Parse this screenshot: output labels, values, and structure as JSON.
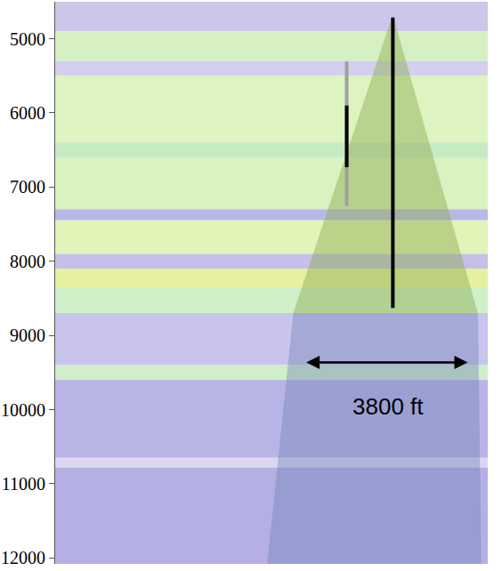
{
  "chart_data": {
    "type": "section",
    "tick_labels": "y",
    "grid": false,
    "xlim": [
      0,
      10100
    ],
    "ylim": [
      12080,
      4502
    ],
    "yticks": [
      5000,
      6000,
      7000,
      8000,
      9000,
      10000,
      11000,
      12000
    ],
    "layers": [
      {
        "top": 4502,
        "bottom": 4900,
        "color": "#cdc6ea"
      },
      {
        "top": 4900,
        "bottom": 5300,
        "color": "#d6f0c2"
      },
      {
        "top": 5300,
        "bottom": 5500,
        "color": "#d4cfee"
      },
      {
        "top": 5500,
        "bottom": 6400,
        "color": "#ddf4c0"
      },
      {
        "top": 6400,
        "bottom": 6600,
        "color": "#c6eac2"
      },
      {
        "top": 6600,
        "bottom": 7300,
        "color": "#d8f2c0"
      },
      {
        "top": 7300,
        "bottom": 7450,
        "color": "#b8b8e8"
      },
      {
        "top": 7450,
        "bottom": 7900,
        "color": "#e2f4b8"
      },
      {
        "top": 7900,
        "bottom": 8100,
        "color": "#c4c0ea"
      },
      {
        "top": 8100,
        "bottom": 8350,
        "color": "#e6f0a0"
      },
      {
        "top": 8350,
        "bottom": 8700,
        "color": "#d0f0c8"
      },
      {
        "top": 8700,
        "bottom": 9400,
        "color": "#c8c4ec"
      },
      {
        "top": 9400,
        "bottom": 9600,
        "color": "#d0eec8"
      },
      {
        "top": 9600,
        "bottom": 10650,
        "color": "#b8b4e6"
      },
      {
        "top": 10650,
        "bottom": 10780,
        "color": "#dcd6f2"
      },
      {
        "top": 10780,
        "bottom": 12080,
        "color": "#b4b0e4"
      }
    ],
    "image_regions": [
      {
        "x": [
          7880,
          9870,
          5560
        ],
        "y": [
          4680,
          8700,
          8700
        ],
        "color": "rgba(140,170,80,0.45)"
      },
      {
        "x": [
          5560,
          9870,
          9950,
          4950
        ],
        "y": [
          8700,
          8700,
          12080,
          12080
        ],
        "color": "rgba(110,130,180,0.40)"
      }
    ],
    "wells": [
      {
        "x": [
          6807,
          6807
        ],
        "y": [
          5308,
          7253
        ],
        "color": "#a0a0a0"
      },
      {
        "x": [
          6807,
          6807
        ],
        "y": [
          5901,
          6732
        ],
        "color": "#000000"
      },
      {
        "x": [
          7884,
          7884
        ],
        "y": [
          4715,
          8630
        ],
        "color": "#000000"
      }
    ],
    "measure": {
      "x": [
        5832,
        9632
      ],
      "y": 9365,
      "label": "3800 ft",
      "label_x": 7762,
      "label_y": 9957
    }
  }
}
